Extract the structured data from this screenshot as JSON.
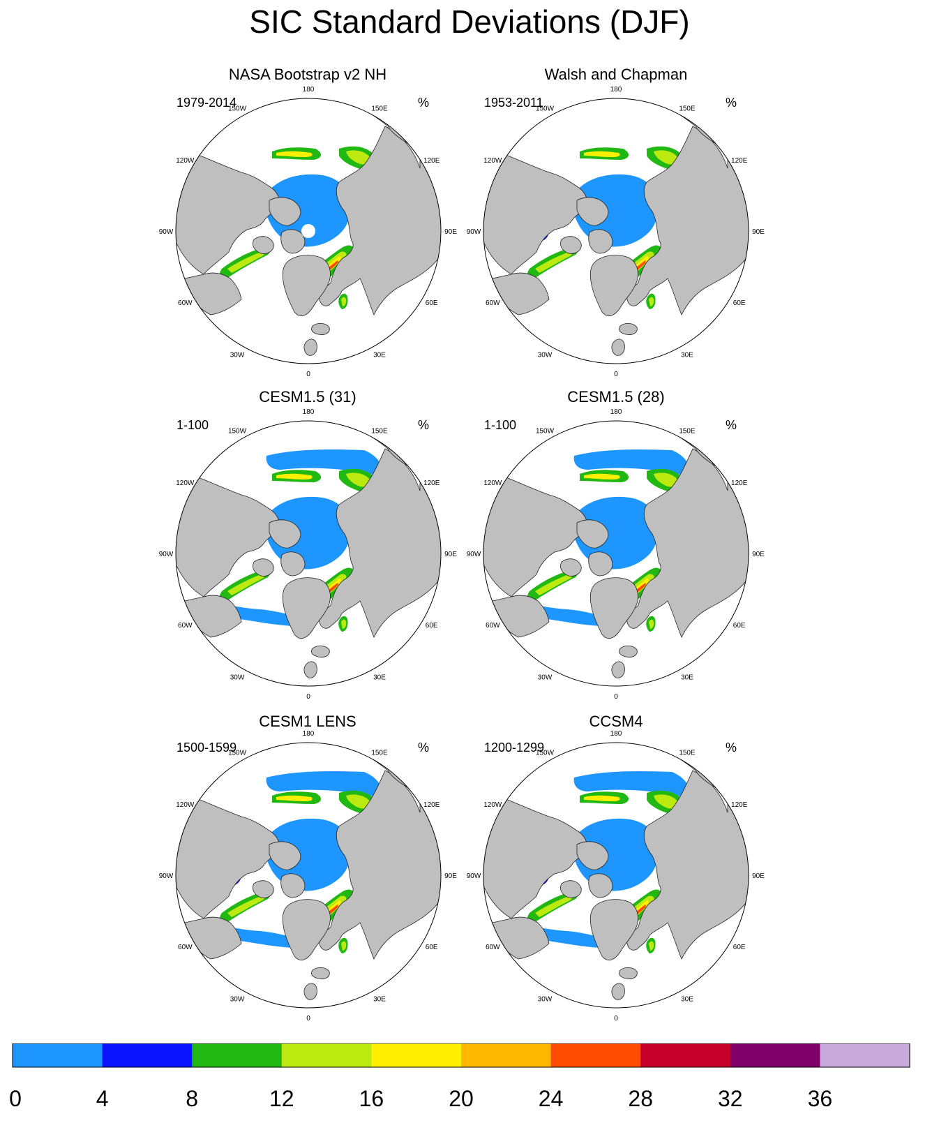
{
  "title": "SIC Standard Deviations (DJF)",
  "colors": {
    "land": "#bfbfbf",
    "ocean": "#ffffff",
    "coast": "#222222",
    "levels": [
      "#1e96ff",
      "#0a14ff",
      "#22b814",
      "#bcea10",
      "#ffef00",
      "#ffb800",
      "#ff4c00",
      "#c8002c",
      "#80006a",
      "#c8aadb"
    ]
  },
  "longitude_labels": [
    "180",
    "150E",
    "120E",
    "90E",
    "60E",
    "30E",
    "0",
    "30W",
    "60W",
    "90W",
    "120W",
    "150W"
  ],
  "panels": [
    {
      "title": "NASA Bootstrap v2 NH",
      "period": "1979-2014",
      "unit": "%",
      "pole_hole": true
    },
    {
      "title": "Walsh and Chapman",
      "period": "1953-2011",
      "unit": "%",
      "pole_hole": false
    },
    {
      "title": "CESM1.5 (31)",
      "period": "1-100",
      "unit": "%",
      "pole_hole": false
    },
    {
      "title": "CESM1.5 (28)",
      "period": "1-100",
      "unit": "%",
      "pole_hole": false
    },
    {
      "title": "CESM1 LENS",
      "period": "1500-1599",
      "unit": "%",
      "pole_hole": false
    },
    {
      "title": "CCSM4",
      "period": "1200-1299",
      "unit": "%",
      "pole_hole": false
    }
  ],
  "colorbar": {
    "labels": [
      "0",
      "4",
      "8",
      "12",
      "16",
      "20",
      "24",
      "28",
      "32",
      "36"
    ]
  }
}
